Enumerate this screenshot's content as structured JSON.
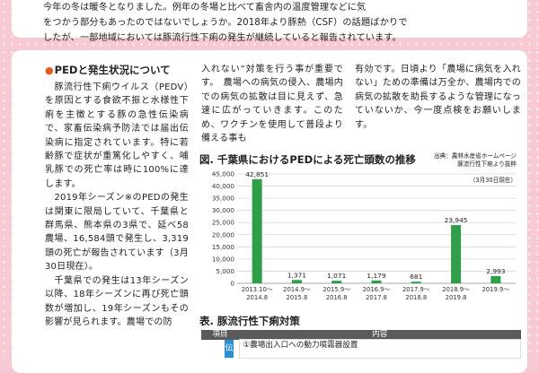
{
  "intro": {
    "line1": "今年の冬は暖冬となりました。例年の冬場と比べて畜舎内の温度管理などに気",
    "line2": "をつかう部分もあったのではないでしょうか。2018年より豚熱（CSF）の話題ばかりで",
    "line3": "したが、一部地域においては豚流行性下痢の発生が継続していると報告されています。"
  },
  "section": {
    "heading": "PEDと発生状況について",
    "para1": "豚流行性下痢ウイルス（PEDV）を原因とする食欲不振と水様性下痢を主徴とする豚の急性伝染病で、家畜伝染病予防法では届出伝染病に指定されています。特に若齢豚で症状が重篤化しやすく、哺乳豚での死亡率は時に100%に達します。",
    "para2": "2019年シーズン※のPEDの発生は関東に限局していて、千葉県と群馬県、熊本県の3県で、延べ58農場、16,584頭で発生し、3,319頭の死亡が報告されています（3月30日現在）。",
    "para3": "千葉県での発生は13年シーズン以降、18年シーズンに再び死亡頭数が増加し、19年シーズンもその影響が見られます。農場での防"
  },
  "mid_text": "入れない”対策を行う事が重要です。　農場への病気の侵入、農場内での病気の拡散は目に見えず、急速に広がっていきます。このため、ワクチンを使用して普段より備える事も",
  "right_text": "有効です。日頃より「農場に病気を入れない」ための準備は万全か、農場内での病気の拡散を助長するような管理になっていないか、今一度点検をお願いします。",
  "figure": {
    "title": "図. 千葉県におけるPEDによる死亡頭数の推移",
    "source_line1": "出典：農林水産省ホームページ",
    "source_line2": "豚流行性下痢より抜粋",
    "date_note": "（3月30日現在）"
  },
  "chart_data": {
    "type": "bar",
    "title": "千葉県におけるPEDによる死亡頭数の推移",
    "categories": [
      [
        "2013.10～",
        "2014.8"
      ],
      [
        "2014.9～",
        "2015.8"
      ],
      [
        "2015.9～",
        "2016.8"
      ],
      [
        "2016.9～",
        "2017.8"
      ],
      [
        "2017.9～",
        "2018.8"
      ],
      [
        "2018.9～",
        "2019.8"
      ],
      [
        "2019.9～",
        ""
      ]
    ],
    "values": [
      42851,
      1371,
      1071,
      1179,
      681,
      23945,
      2993
    ],
    "value_labels": [
      "42,851",
      "1,371",
      "1,071",
      "1,179",
      "681",
      "23,945",
      "2,993"
    ],
    "ylim": [
      0,
      45000
    ],
    "yticks": [
      0,
      5000,
      10000,
      15000,
      20000,
      25000,
      30000,
      35000,
      40000,
      45000
    ],
    "ytick_labels": [
      "0",
      "5,000",
      "10,000",
      "15,000",
      "20,000",
      "25,000",
      "30,000",
      "35,000",
      "40,000",
      "45,000"
    ],
    "grid": true,
    "bar_color": "#2e9e48"
  },
  "table": {
    "title": "表. 豚流行性下痢対策",
    "col1": "項目",
    "col2": "内容",
    "category": "伝",
    "row1": "①農場出入口への動力噴霧器設置"
  }
}
